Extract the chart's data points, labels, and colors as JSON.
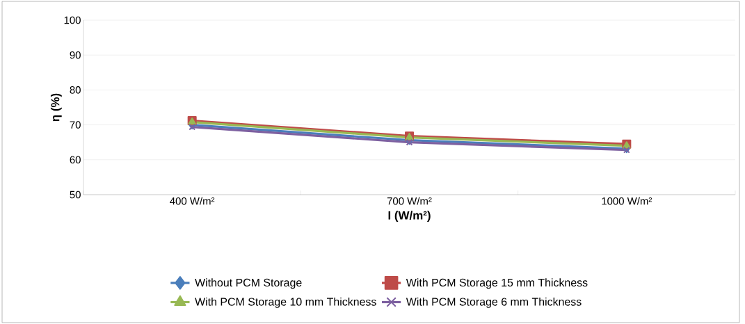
{
  "chart_data": {
    "type": "line",
    "xlabel": "I (W/m²)",
    "ylabel": "η (%)",
    "categories": [
      "400 W/m²",
      "700 W/m²",
      "1000 W/m²"
    ],
    "series": [
      {
        "name": "Without PCM Storage",
        "color": "#4a7ebb",
        "marker": "diamond",
        "values": [
          70.0,
          65.6,
          63.2
        ]
      },
      {
        "name": "With PCM Storage 15 mm Thickness",
        "color": "#be4b48",
        "marker": "square",
        "values": [
          71.2,
          66.8,
          64.5
        ]
      },
      {
        "name": "With PCM Storage 10 mm Thickness",
        "color": "#98b954",
        "marker": "triangle",
        "values": [
          70.8,
          66.4,
          64.0
        ]
      },
      {
        "name": "With PCM Storage 6 mm Thickness",
        "color": "#7d60a0",
        "marker": "cross",
        "values": [
          69.4,
          65.0,
          62.8
        ]
      }
    ],
    "ylim": [
      50,
      100
    ],
    "yticks": [
      50,
      60,
      70,
      80,
      90,
      100
    ],
    "grid": "y",
    "legend": "bottom"
  }
}
